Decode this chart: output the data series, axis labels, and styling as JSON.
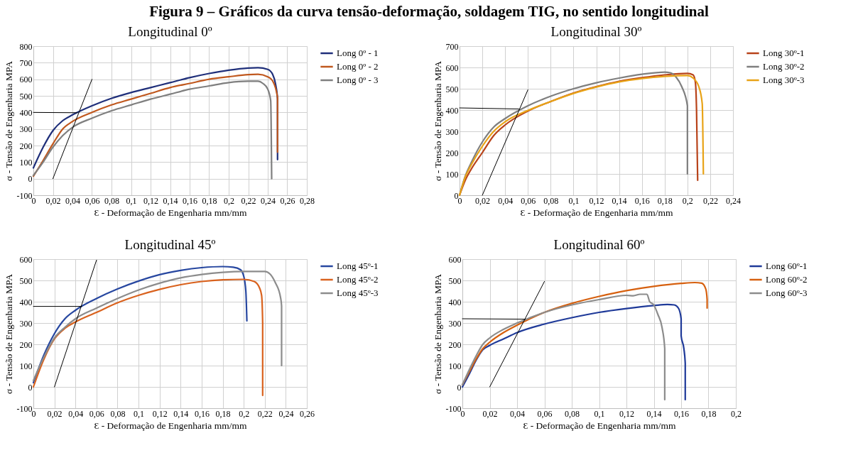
{
  "chart_data": [
    {
      "type": "line",
      "title": "Longitudinal 0º",
      "xlabel": "Ɛ - Deformação de Engenharia mm/mm",
      "ylabel": "σ - Tensão de Engenharia MPA",
      "annotations": [
        "Figura 9 – Gráficos da curva tensão-deformação, soldagem TIG, no sentido longitudinal"
      ],
      "xlim": [
        0,
        0.28
      ],
      "ylim": [
        -100,
        800
      ],
      "xticks": [
        {
          "value": 0,
          "label": "0"
        },
        {
          "value": 0.02,
          "label": "0,02"
        },
        {
          "value": 0.04,
          "label": "0,04"
        },
        {
          "value": 0.06,
          "label": "0,06"
        },
        {
          "value": 0.08,
          "label": "0,08"
        },
        {
          "value": 0.1,
          "label": "0,1"
        },
        {
          "value": 0.12,
          "label": "0,12"
        },
        {
          "value": 0.14,
          "label": "0,14"
        },
        {
          "value": 0.16,
          "label": "0,16"
        },
        {
          "value": 0.18,
          "label": "0,18"
        },
        {
          "value": 0.2,
          "label": "0,2"
        },
        {
          "value": 0.22,
          "label": "0,22"
        },
        {
          "value": 0.24,
          "label": "0,24"
        },
        {
          "value": 0.26,
          "label": "0,26"
        },
        {
          "value": 0.28,
          "label": "0,28"
        }
      ],
      "yticks": [
        -100,
        0,
        100,
        200,
        300,
        400,
        500,
        600,
        700,
        800
      ],
      "grid": true,
      "legend": "right",
      "series": [
        {
          "name": "Long 0º - 1",
          "color": "#1f2f7a",
          "x": [
            0,
            0.01,
            0.02,
            0.03,
            0.04,
            0.06,
            0.08,
            0.1,
            0.12,
            0.14,
            0.16,
            0.18,
            0.2,
            0.22,
            0.23,
            0.24,
            0.245,
            0.248,
            0.25,
            0.25
          ],
          "values": [
            65,
            190,
            290,
            350,
            385,
            440,
            485,
            520,
            550,
            580,
            610,
            635,
            655,
            668,
            670,
            660,
            630,
            570,
            480,
            115
          ]
        },
        {
          "name": "Long 0º - 2",
          "color": "#c0581e",
          "x": [
            0,
            0.01,
            0.02,
            0.03,
            0.04,
            0.06,
            0.08,
            0.1,
            0.12,
            0.14,
            0.16,
            0.18,
            0.2,
            0.22,
            0.23,
            0.24,
            0.245,
            0.25,
            0.25
          ],
          "values": [
            15,
            110,
            210,
            300,
            345,
            400,
            445,
            480,
            515,
            550,
            575,
            600,
            615,
            628,
            630,
            615,
            590,
            490,
            160
          ]
        },
        {
          "name": "Long 0º - 3",
          "color": "#7f7f7f",
          "x": [
            0,
            0.01,
            0.02,
            0.03,
            0.04,
            0.06,
            0.08,
            0.1,
            0.12,
            0.14,
            0.16,
            0.18,
            0.2,
            0.22,
            0.23,
            0.235,
            0.24,
            0.243,
            0.244
          ],
          "values": [
            20,
            100,
            190,
            260,
            310,
            365,
            410,
            445,
            480,
            510,
            540,
            560,
            580,
            588,
            588,
            575,
            540,
            470,
            0
          ]
        },
        {
          "type": "line",
          "color": "#000000",
          "x": [
            0.02,
            0.06
          ],
          "values": [
            0,
            600
          ]
        },
        {
          "type": "line",
          "color": "#000000",
          "x": [
            0,
            0.045
          ],
          "values": [
            400,
            398
          ]
        }
      ]
    },
    {
      "type": "line",
      "title": "Longitudinal 30º",
      "xlabel": "Ɛ - Deformação de Engenharia mm/mm",
      "ylabel": "σ - Tensão de Engenharia MPA",
      "xlim": [
        0,
        0.24
      ],
      "ylim": [
        0,
        700
      ],
      "xticks": [
        {
          "value": 0,
          "label": "0"
        },
        {
          "value": 0.02,
          "label": "0,02"
        },
        {
          "value": 0.04,
          "label": "0,04"
        },
        {
          "value": 0.06,
          "label": "0,06"
        },
        {
          "value": 0.08,
          "label": "0,08"
        },
        {
          "value": 0.1,
          "label": "0,1"
        },
        {
          "value": 0.12,
          "label": "0,12"
        },
        {
          "value": 0.14,
          "label": "0,14"
        },
        {
          "value": 0.16,
          "label": "0,16"
        },
        {
          "value": 0.18,
          "label": "0,18"
        },
        {
          "value": 0.2,
          "label": "0,2"
        },
        {
          "value": 0.22,
          "label": "0,22"
        },
        {
          "value": 0.24,
          "label": "0,24"
        }
      ],
      "yticks": [
        0,
        100,
        200,
        300,
        400,
        500,
        600,
        700
      ],
      "grid": true,
      "legend": "right",
      "series": [
        {
          "name": "Long 30º-1",
          "color": "#b8431a",
          "x": [
            0,
            0.005,
            0.01,
            0.02,
            0.03,
            0.04,
            0.06,
            0.08,
            0.1,
            0.12,
            0.14,
            0.16,
            0.18,
            0.2,
            0.205,
            0.207,
            0.208,
            0.209
          ],
          "values": [
            0,
            70,
            120,
            200,
            280,
            330,
            395,
            440,
            480,
            510,
            535,
            552,
            565,
            572,
            565,
            530,
            400,
            70
          ]
        },
        {
          "name": "Long 30º-2",
          "color": "#7f7f7f",
          "x": [
            0,
            0.005,
            0.01,
            0.02,
            0.03,
            0.04,
            0.06,
            0.08,
            0.1,
            0.12,
            0.14,
            0.16,
            0.18,
            0.185,
            0.19,
            0.195,
            0.2,
            0.2
          ],
          "values": [
            0,
            90,
            150,
            250,
            320,
            360,
            420,
            465,
            500,
            528,
            550,
            568,
            578,
            575,
            555,
            510,
            420,
            100
          ]
        },
        {
          "name": "Long 30º-3",
          "color": "#e8a317",
          "x": [
            0,
            0.005,
            0.01,
            0.02,
            0.03,
            0.04,
            0.06,
            0.08,
            0.1,
            0.12,
            0.14,
            0.16,
            0.18,
            0.2,
            0.205,
            0.21,
            0.213,
            0.214
          ],
          "values": [
            0,
            85,
            140,
            230,
            300,
            345,
            398,
            440,
            478,
            508,
            532,
            548,
            558,
            562,
            550,
            510,
            430,
            100
          ]
        },
        {
          "type": "line",
          "color": "#000000",
          "x": [
            0.02,
            0.06
          ],
          "values": [
            0,
            495
          ]
        },
        {
          "type": "line",
          "color": "#000000",
          "x": [
            0,
            0.052
          ],
          "values": [
            410,
            405
          ]
        }
      ]
    },
    {
      "type": "line",
      "title": "Longitudinal 45º",
      "xlabel": "Ɛ - Deformação de Engenharia mm/mm",
      "ylabel": "σ - Tensão de Engenharia MPA",
      "xlim": [
        0,
        0.26
      ],
      "ylim": [
        -100,
        600
      ],
      "xticks": [
        {
          "value": 0,
          "label": "0"
        },
        {
          "value": 0.02,
          "label": "0,02"
        },
        {
          "value": 0.04,
          "label": "0,04"
        },
        {
          "value": 0.06,
          "label": "0,06"
        },
        {
          "value": 0.08,
          "label": "0,08"
        },
        {
          "value": 0.1,
          "label": "0,1"
        },
        {
          "value": 0.12,
          "label": "0,12"
        },
        {
          "value": 0.14,
          "label": "0,14"
        },
        {
          "value": 0.16,
          "label": "0,16"
        },
        {
          "value": 0.18,
          "label": "0,18"
        },
        {
          "value": 0.2,
          "label": "0,2"
        },
        {
          "value": 0.22,
          "label": "0,22"
        },
        {
          "value": 0.24,
          "label": "0,24"
        },
        {
          "value": 0.26,
          "label": "0,26"
        }
      ],
      "yticks": [
        -100,
        0,
        100,
        200,
        300,
        400,
        500,
        600
      ],
      "grid": true,
      "legend": "right",
      "series": [
        {
          "name": "Long 45º-1",
          "color": "#2747a0",
          "x": [
            0,
            0.01,
            0.02,
            0.03,
            0.04,
            0.06,
            0.08,
            0.1,
            0.12,
            0.14,
            0.16,
            0.18,
            0.19,
            0.197,
            0.2,
            0.202,
            0.203
          ],
          "values": [
            20,
            150,
            250,
            320,
            360,
            415,
            460,
            497,
            527,
            547,
            560,
            565,
            562,
            550,
            520,
            450,
            310
          ]
        },
        {
          "name": "Long 45º-2",
          "color": "#d9621e",
          "x": [
            0,
            0.01,
            0.02,
            0.03,
            0.04,
            0.06,
            0.08,
            0.1,
            0.12,
            0.14,
            0.16,
            0.18,
            0.2,
            0.21,
            0.215,
            0.217,
            0.218,
            0.218
          ],
          "values": [
            0,
            130,
            225,
            275,
            305,
            350,
            395,
            430,
            458,
            480,
            495,
            503,
            505,
            495,
            465,
            430,
            300,
            -40
          ]
        },
        {
          "name": "Long 45º-3",
          "color": "#8c8c8c",
          "x": [
            0,
            0.01,
            0.02,
            0.03,
            0.04,
            0.06,
            0.08,
            0.1,
            0.12,
            0.14,
            0.16,
            0.18,
            0.2,
            0.22,
            0.225,
            0.23,
            0.235,
            0.236,
            0.236
          ],
          "values": [
            30,
            140,
            230,
            280,
            320,
            370,
            415,
            455,
            487,
            512,
            528,
            538,
            542,
            542,
            530,
            490,
            420,
            380,
            100
          ]
        },
        {
          "type": "line",
          "color": "#000000",
          "x": [
            0.02,
            0.06
          ],
          "values": [
            0,
            595
          ]
        },
        {
          "type": "line",
          "color": "#000000",
          "x": [
            0,
            0.046
          ],
          "values": [
            378,
            378
          ]
        }
      ]
    },
    {
      "type": "line",
      "title": "Longitudinal 60º",
      "xlabel": "Ɛ - Deformação de Engenharia mm/mm",
      "ylabel": "σ - Tensão de Engenharia MPA",
      "xlim": [
        0,
        0.2
      ],
      "ylim": [
        -100,
        600
      ],
      "xticks": [
        {
          "value": 0,
          "label": "0"
        },
        {
          "value": 0.02,
          "label": "0,02"
        },
        {
          "value": 0.04,
          "label": "0,04"
        },
        {
          "value": 0.06,
          "label": "0,06"
        },
        {
          "value": 0.08,
          "label": "0,08"
        },
        {
          "value": 0.1,
          "label": "0,1"
        },
        {
          "value": 0.12,
          "label": "0,12"
        },
        {
          "value": 0.14,
          "label": "0,14"
        },
        {
          "value": 0.16,
          "label": "0,16"
        },
        {
          "value": 0.18,
          "label": "0,18"
        },
        {
          "value": 0.2,
          "label": "0,2"
        }
      ],
      "yticks": [
        -100,
        0,
        100,
        200,
        300,
        400,
        500,
        600
      ],
      "grid": true,
      "legend": "right",
      "series": [
        {
          "name": "Long 60º-1",
          "color": "#1f3a99",
          "x": [
            0,
            0.005,
            0.01,
            0.015,
            0.02,
            0.03,
            0.04,
            0.06,
            0.08,
            0.1,
            0.12,
            0.14,
            0.15,
            0.155,
            0.158,
            0.16,
            0.16,
            0.162,
            0.163,
            0.163
          ],
          "values": [
            0,
            60,
            125,
            175,
            195,
            225,
            255,
            295,
            325,
            350,
            368,
            382,
            387,
            385,
            370,
            320,
            240,
            180,
            110,
            -60
          ]
        },
        {
          "name": "Long 60º-2",
          "color": "#d6600f",
          "x": [
            0,
            0.005,
            0.01,
            0.015,
            0.02,
            0.03,
            0.04,
            0.06,
            0.08,
            0.1,
            0.12,
            0.14,
            0.16,
            0.17,
            0.175,
            0.178,
            0.179,
            0.179
          ],
          "values": [
            10,
            70,
            130,
            180,
            210,
            255,
            290,
            350,
            392,
            425,
            452,
            472,
            486,
            490,
            487,
            460,
            410,
            370
          ]
        },
        {
          "name": "Long 60º-3",
          "color": "#8c8c8c",
          "x": [
            0,
            0.005,
            0.01,
            0.015,
            0.02,
            0.03,
            0.04,
            0.06,
            0.08,
            0.1,
            0.12,
            0.125,
            0.13,
            0.135,
            0.137,
            0.14,
            0.143,
            0.146,
            0.148,
            0.148
          ],
          "values": [
            10,
            80,
            145,
            200,
            230,
            270,
            300,
            350,
            385,
            410,
            430,
            428,
            435,
            435,
            400,
            385,
            340,
            280,
            180,
            -60
          ]
        },
        {
          "type": "line",
          "color": "#000000",
          "x": [
            0.02,
            0.06
          ],
          "values": [
            0,
            495
          ]
        },
        {
          "type": "line",
          "color": "#000000",
          "x": [
            0,
            0.046
          ],
          "values": [
            320,
            318
          ]
        }
      ]
    }
  ]
}
